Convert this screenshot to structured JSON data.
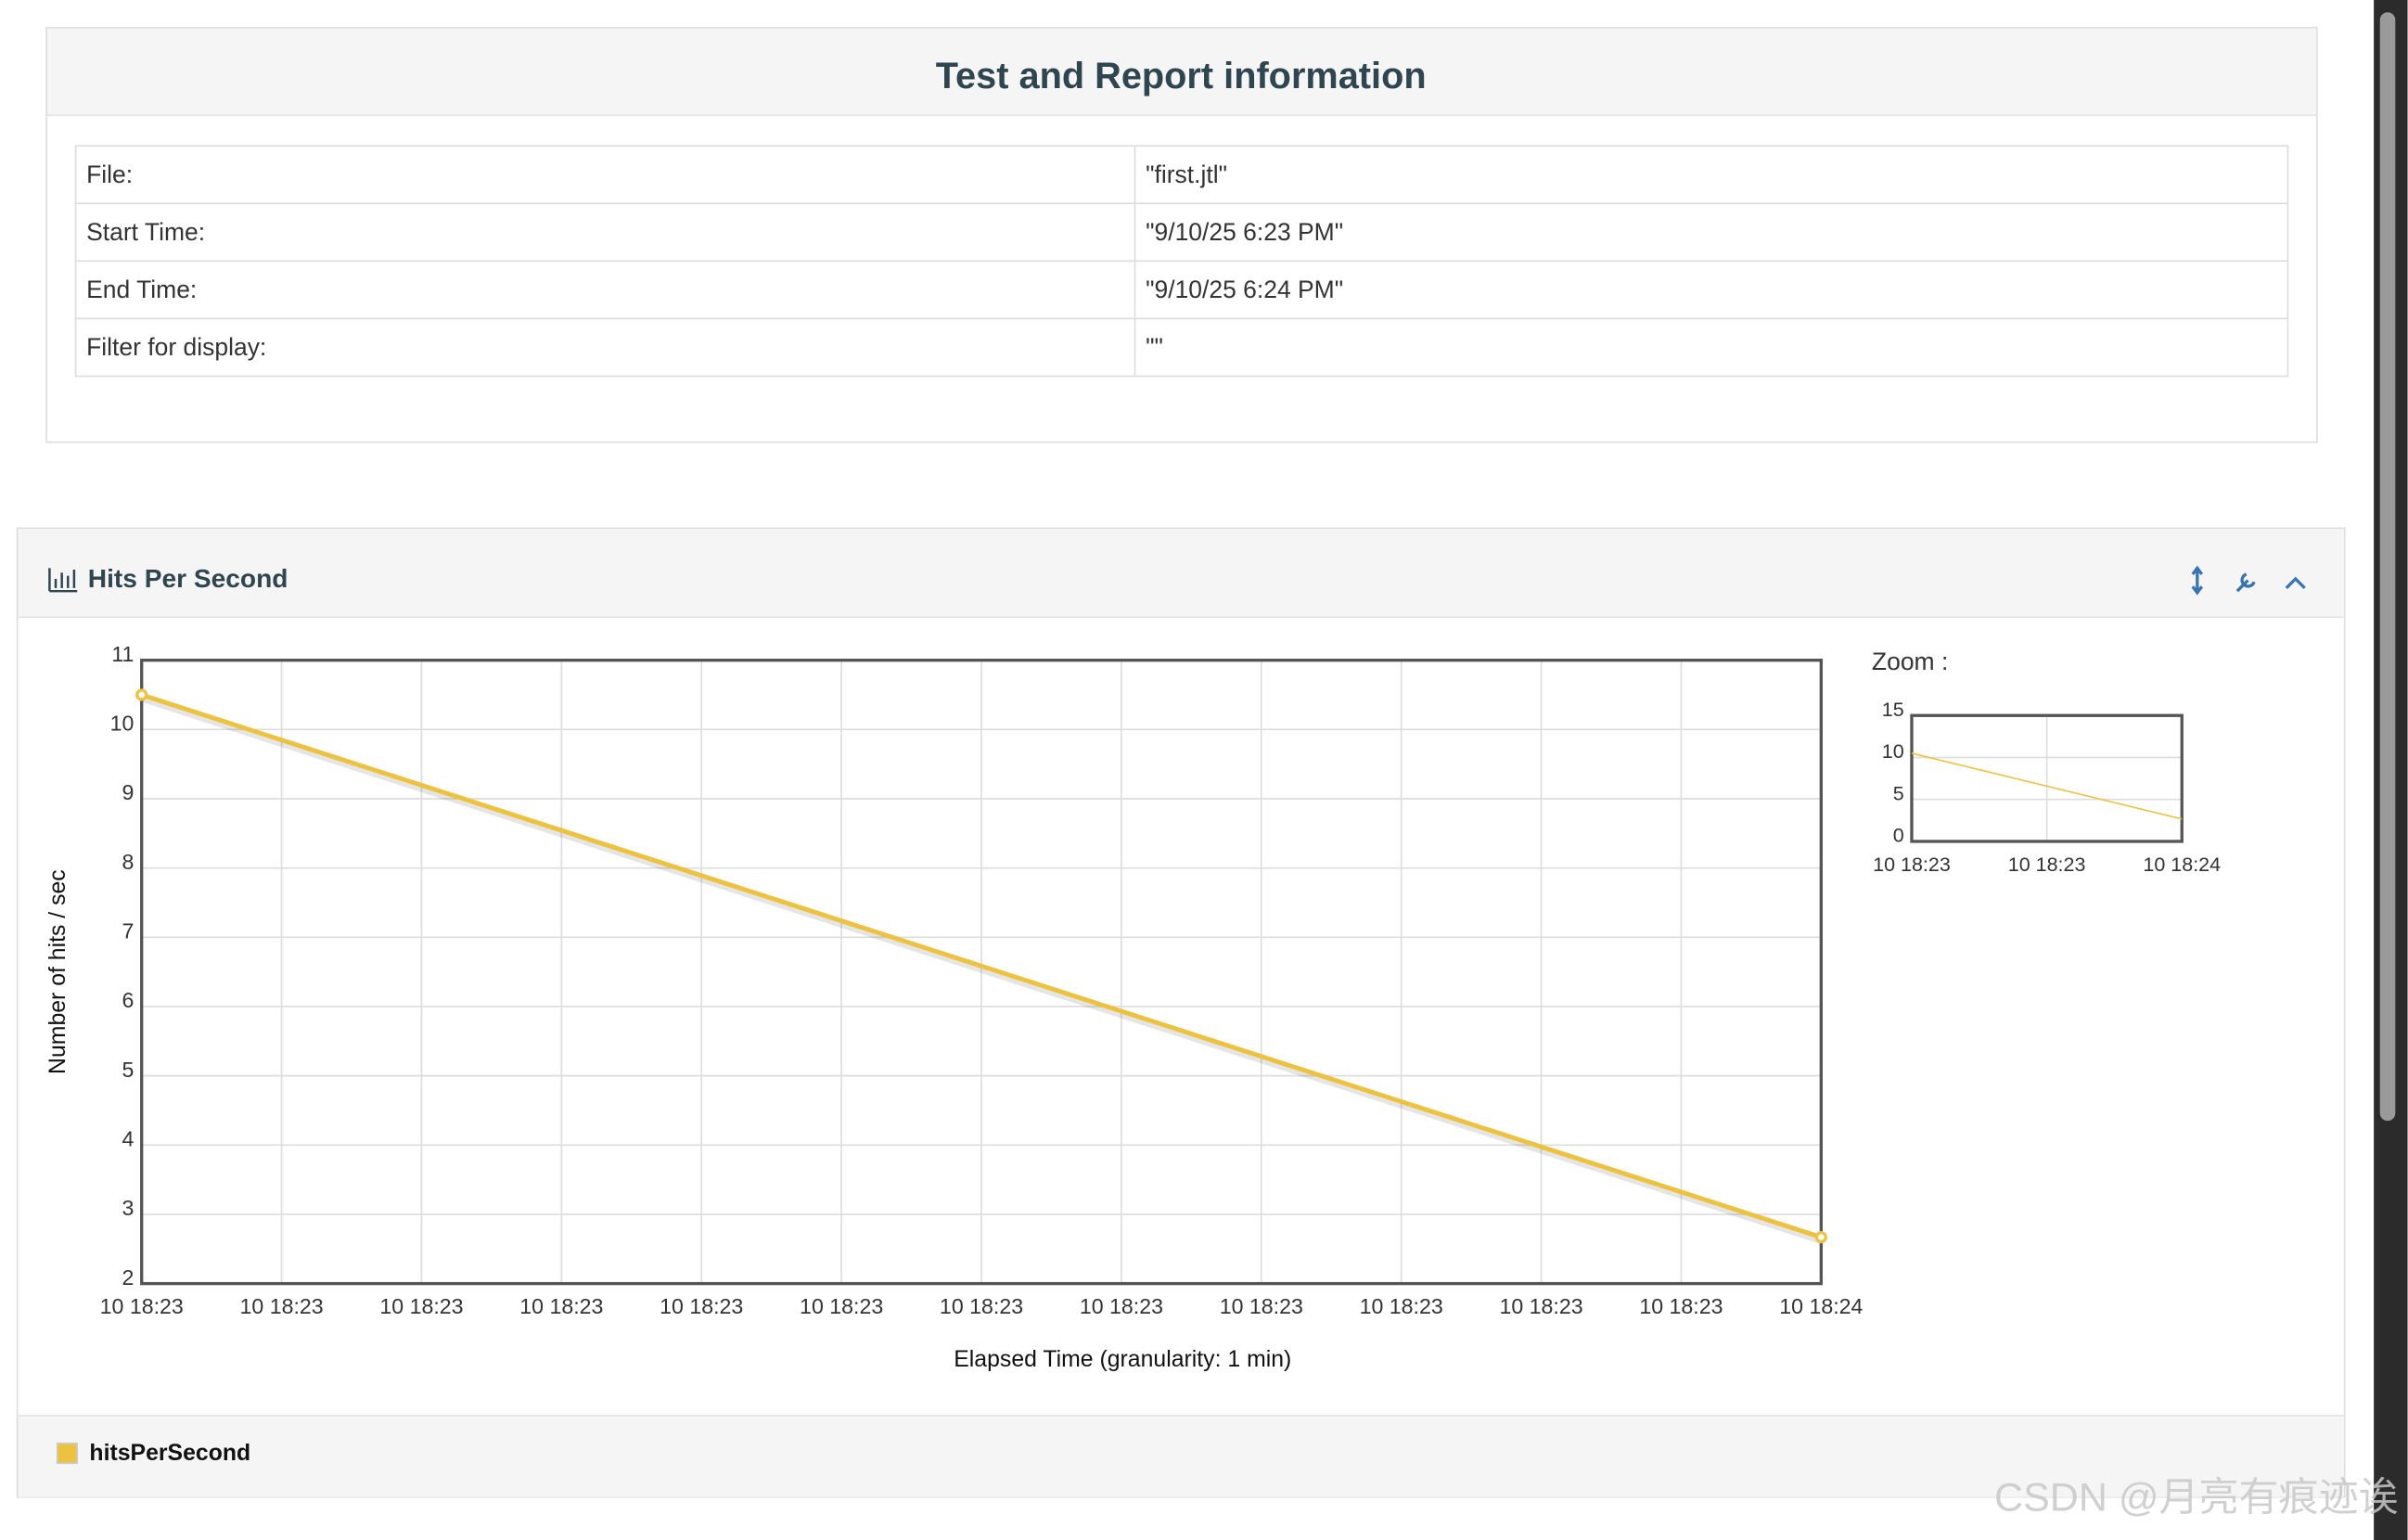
{
  "report": {
    "title": "Test and Report information",
    "rows": [
      [
        "File:",
        "\"first.jtl\""
      ],
      [
        "Start Time:",
        "\"9/10/25 6:23 PM\""
      ],
      [
        "End Time:",
        "\"9/10/25 6:24 PM\""
      ],
      [
        "Filter for display:",
        "\"\""
      ]
    ]
  },
  "panel": {
    "title": "Hits Per Second"
  },
  "chart_data": [
    {
      "type": "line",
      "x": [
        "10 18:23",
        "10 18:24"
      ],
      "series": [
        {
          "name": "hitsPerSecond",
          "color": "#edc240",
          "values": [
            10.5,
            2.67
          ]
        }
      ],
      "ylim": [
        2,
        11
      ],
      "yticks": [
        2,
        3,
        4,
        5,
        6,
        7,
        8,
        9,
        10,
        11
      ],
      "xticks": [
        "10 18:23",
        "10 18:23",
        "10 18:23",
        "10 18:23",
        "10 18:23",
        "10 18:23",
        "10 18:23",
        "10 18:23",
        "10 18:23",
        "10 18:23",
        "10 18:23",
        "10 18:23",
        "10 18:24"
      ],
      "xlabel": "Elapsed Time (granularity: 1 min)",
      "ylabel": "Number of hits / sec",
      "grid": true
    },
    {
      "type": "line",
      "title": "Zoom :",
      "x": [
        "10 18:23",
        "10 18:24"
      ],
      "series": [
        {
          "color": "#edc240",
          "values": [
            10.5,
            2.67
          ]
        }
      ],
      "ylim": [
        0,
        15
      ],
      "yticks": [
        0,
        5,
        10,
        15
      ],
      "xticks": [
        "10 18:23",
        "10 18:23",
        "10 18:24"
      ],
      "grid": true
    }
  ],
  "watermark": "CSDN @月亮有痕迹诶"
}
